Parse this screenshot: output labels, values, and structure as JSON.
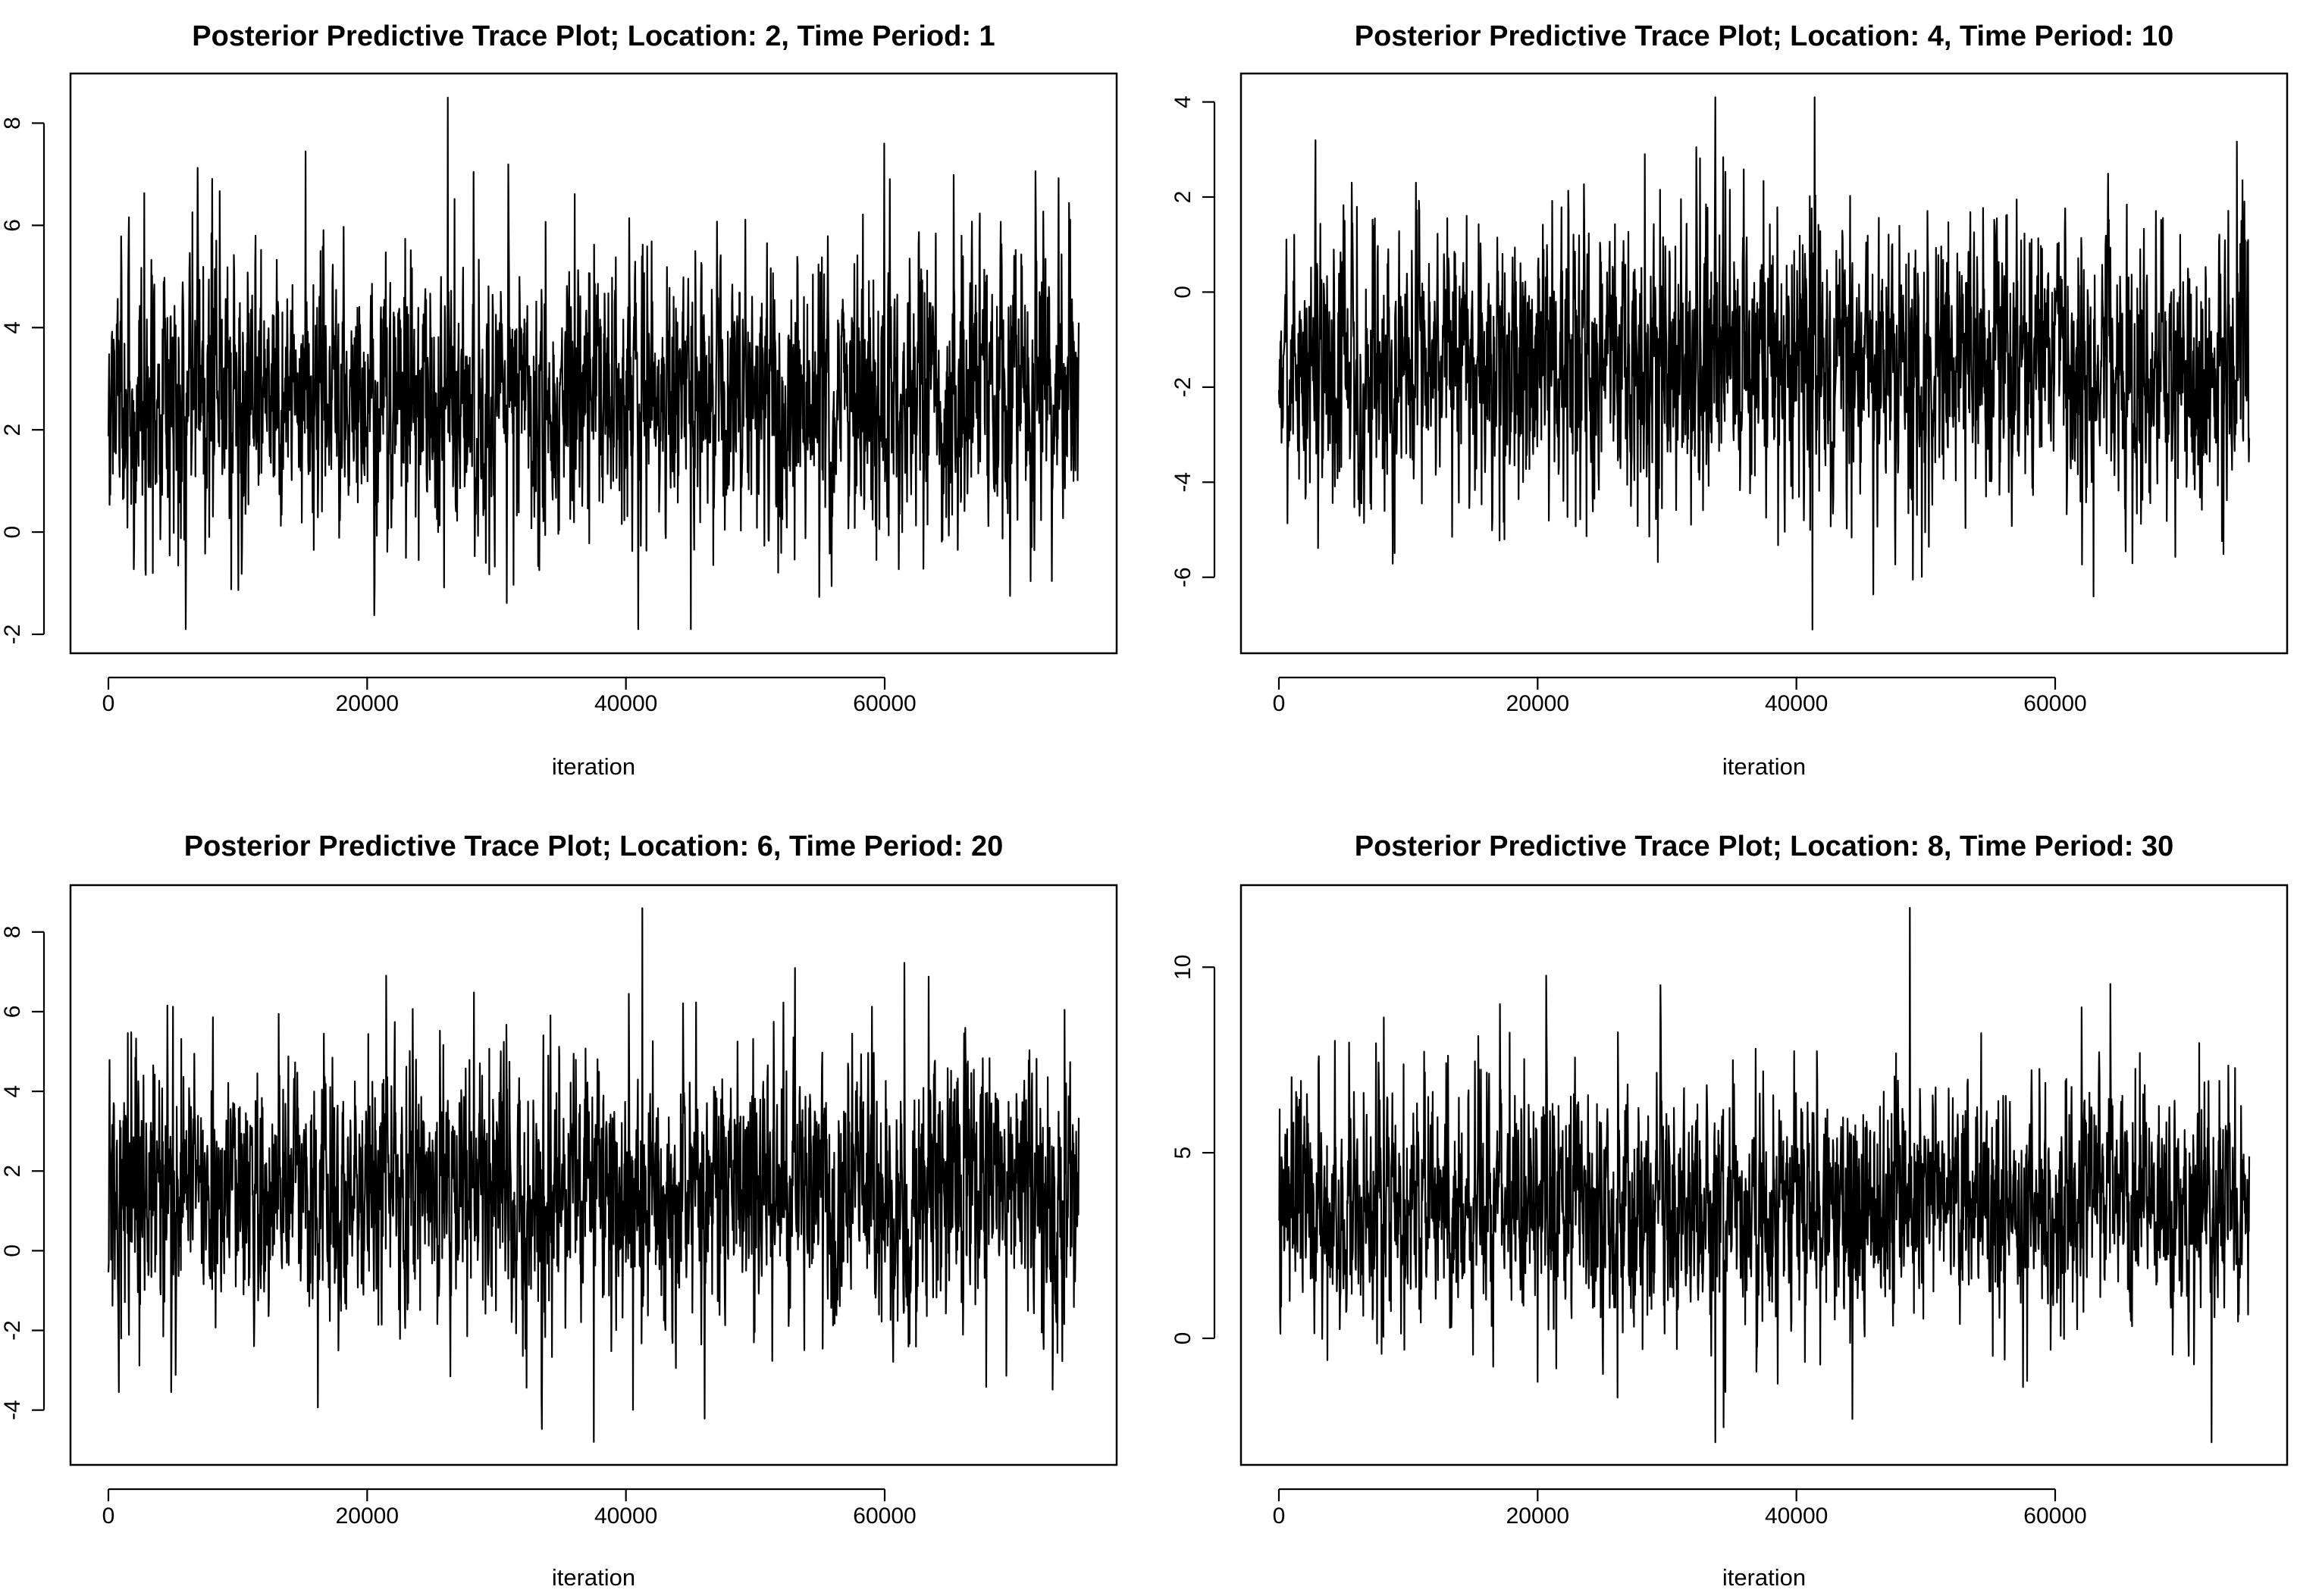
{
  "figure": {
    "background": "#ffffff",
    "line_color": "#000000"
  },
  "chart_data": [
    {
      "type": "line",
      "title": "Posterior Predictive Trace Plot; Location: 2, Time Period: 1",
      "xlabel": "iteration",
      "ylabel": "",
      "xlim": [
        0,
        75000
      ],
      "ylim": [
        -2.0,
        8.6
      ],
      "x_ticks": [
        0,
        20000,
        40000,
        60000
      ],
      "x_tick_labels": [
        "0",
        "20000",
        "40000",
        "60000"
      ],
      "y_ticks": [
        -2,
        0,
        2,
        4,
        6,
        8
      ],
      "y_tick_labels": [
        "-2",
        "0",
        "2",
        "4",
        "6",
        "8"
      ],
      "grid": false,
      "series": [
        {
          "x_start": 1,
          "x_end": 75000,
          "mean": 2.7,
          "typical_range": [
            0.3,
            5.3
          ],
          "min": -1.9,
          "max": 8.5,
          "color": "#000000"
        }
      ]
    },
    {
      "type": "line",
      "title": "Posterior Predictive Trace Plot; Location: 4, Time Period: 10",
      "xlabel": "iteration",
      "ylabel": "",
      "xlim": [
        0,
        75000
      ],
      "ylim": [
        -7.2,
        4.2
      ],
      "x_ticks": [
        0,
        20000,
        40000,
        60000
      ],
      "x_tick_labels": [
        "0",
        "20000",
        "40000",
        "60000"
      ],
      "y_ticks": [
        -6,
        -4,
        -2,
        0,
        2,
        4
      ],
      "y_tick_labels": [
        "-6",
        "-4",
        "-2",
        "0",
        "2",
        "4"
      ],
      "grid": false,
      "series": [
        {
          "x_start": 1,
          "x_end": 75000,
          "mean": -1.5,
          "typical_range": [
            -4.2,
            1.2
          ],
          "min": -7.1,
          "max": 4.1,
          "color": "#000000"
        }
      ]
    },
    {
      "type": "line",
      "title": "Posterior Predictive Trace Plot; Location: 6, Time Period: 20",
      "xlabel": "iteration",
      "ylabel": "",
      "xlim": [
        0,
        75000
      ],
      "ylim": [
        -4.9,
        8.7
      ],
      "x_ticks": [
        0,
        20000,
        40000,
        60000
      ],
      "x_tick_labels": [
        "0",
        "20000",
        "40000",
        "60000"
      ],
      "y_ticks": [
        -4,
        -2,
        0,
        2,
        4,
        6,
        8
      ],
      "y_tick_labels": [
        "-4",
        "-2",
        "0",
        "2",
        "4",
        "6",
        "8"
      ],
      "grid": false,
      "series": [
        {
          "x_start": 1,
          "x_end": 75000,
          "mean": 1.5,
          "typical_range": [
            -1.5,
            4.5
          ],
          "min": -4.8,
          "max": 8.6,
          "color": "#000000"
        }
      ]
    },
    {
      "type": "line",
      "title": "Posterior Predictive Trace Plot; Location: 8, Time Period: 30",
      "xlabel": "iteration",
      "ylabel": "",
      "xlim": [
        0,
        75000
      ],
      "ylim": [
        -2.9,
        11.7
      ],
      "x_ticks": [
        0,
        20000,
        40000,
        60000
      ],
      "x_tick_labels": [
        "0",
        "20000",
        "40000",
        "60000"
      ],
      "y_ticks": [
        0,
        5,
        10
      ],
      "y_tick_labels": [
        "0",
        "5",
        "10"
      ],
      "grid": false,
      "series": [
        {
          "x_start": 1,
          "x_end": 75000,
          "mean": 3.5,
          "typical_range": [
            0.5,
            6.5
          ],
          "min": -2.8,
          "max": 11.6,
          "color": "#000000"
        }
      ]
    }
  ]
}
